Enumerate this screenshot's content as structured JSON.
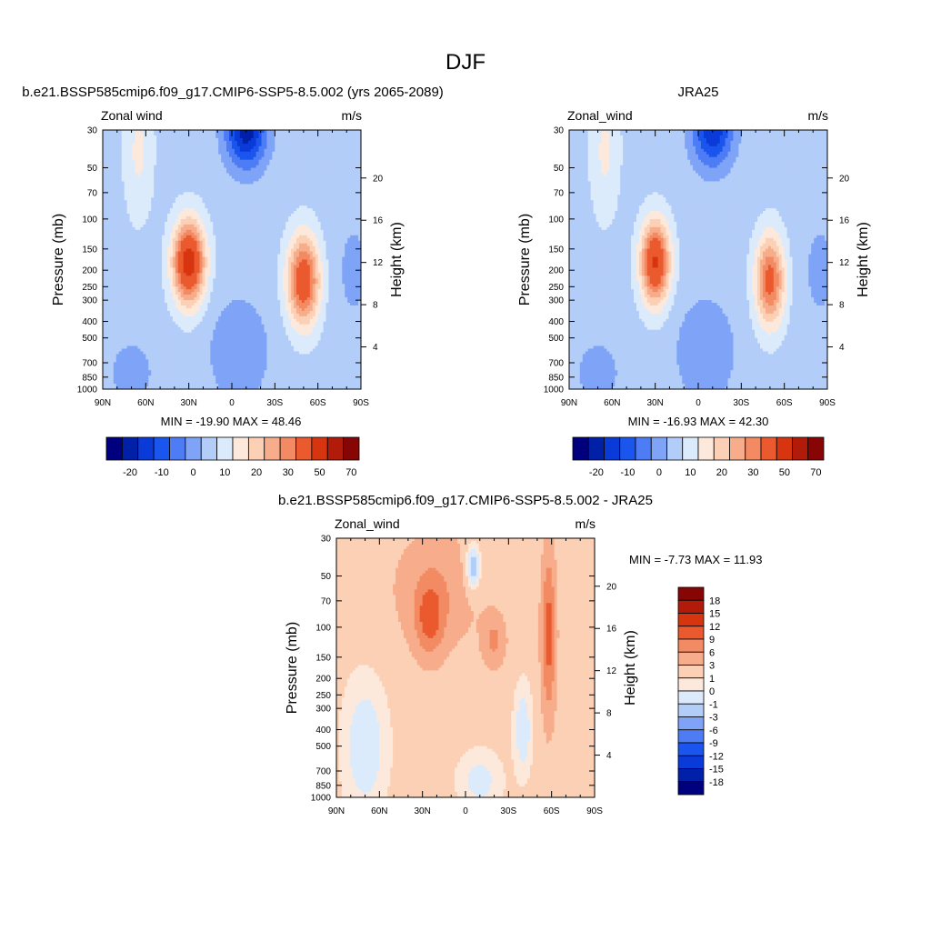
{
  "page_title": "DJF",
  "chart_data": [
    {
      "type": "heatmap",
      "title": "b.e21.BSSP585cmip6.f09_g17.CMIP6-SSP5-8.5.002 (yrs 2065-2089)",
      "left_label": "Zonal wind",
      "right_label": "m/s",
      "ylabel": "Pressure (mb)",
      "ylabel_right": "Height (km)",
      "x_ticks": [
        "90N",
        "60N",
        "30N",
        "0",
        "30S",
        "60S",
        "90S"
      ],
      "y_ticks": [
        "30",
        "50",
        "70",
        "100",
        "150",
        "200",
        "250",
        "300",
        "400",
        "500",
        "700",
        "850",
        "1000"
      ],
      "y_ticks_right": [
        "20",
        "16",
        "12",
        "8",
        "4"
      ],
      "stats": "MIN = -19.90  MAX =  48.46",
      "min": -19.9,
      "max": 48.46,
      "colorbar": {
        "orientation": "horizontal",
        "labels": [
          "-20",
          "-10",
          "0",
          "10",
          "20",
          "30",
          "50",
          "70"
        ],
        "colors": [
          "#00007f",
          "#0020a8",
          "#0a3ad8",
          "#1a55ee",
          "#4d7cf5",
          "#7fa4f7",
          "#b3cdf9",
          "#dcebfb",
          "#fde9dc",
          "#fcd0b4",
          "#f7ad8b",
          "#f28a63",
          "#ea5a2e",
          "#d73410",
          "#b21a0a",
          "#870505"
        ]
      }
    },
    {
      "type": "heatmap",
      "title": "JRA25",
      "left_label": "Zonal_wind",
      "right_label": "m/s",
      "ylabel": "Pressure (mb)",
      "ylabel_right": "Height (km)",
      "x_ticks": [
        "90N",
        "60N",
        "30N",
        "0",
        "30S",
        "60S",
        "90S"
      ],
      "y_ticks": [
        "30",
        "50",
        "70",
        "100",
        "150",
        "200",
        "250",
        "300",
        "400",
        "500",
        "700",
        "850",
        "1000"
      ],
      "y_ticks_right": [
        "20",
        "16",
        "12",
        "8",
        "4"
      ],
      "stats": "MIN = -16.93  MAX =  42.30",
      "min": -16.93,
      "max": 42.3,
      "colorbar": {
        "orientation": "horizontal",
        "labels": [
          "-20",
          "-10",
          "0",
          "10",
          "20",
          "30",
          "50",
          "70"
        ],
        "colors": [
          "#00007f",
          "#0020a8",
          "#0a3ad8",
          "#1a55ee",
          "#4d7cf5",
          "#7fa4f7",
          "#b3cdf9",
          "#dcebfb",
          "#fde9dc",
          "#fcd0b4",
          "#f7ad8b",
          "#f28a63",
          "#ea5a2e",
          "#d73410",
          "#b21a0a",
          "#870505"
        ]
      }
    },
    {
      "type": "heatmap",
      "title": "b.e21.BSSP585cmip6.f09_g17.CMIP6-SSP5-8.5.002 - JRA25",
      "left_label": "Zonal_wind",
      "right_label": "m/s",
      "ylabel": "Pressure (mb)",
      "ylabel_right": "Height (km)",
      "x_ticks": [
        "90N",
        "60N",
        "30N",
        "0",
        "30S",
        "60S",
        "90S"
      ],
      "y_ticks": [
        "30",
        "50",
        "70",
        "100",
        "150",
        "200",
        "250",
        "300",
        "400",
        "500",
        "700",
        "850",
        "1000"
      ],
      "y_ticks_right": [
        "20",
        "16",
        "12",
        "8",
        "4"
      ],
      "stats": "MIN =  -7.73  MAX =  11.93",
      "min": -7.73,
      "max": 11.93,
      "colorbar": {
        "orientation": "vertical",
        "labels": [
          "18",
          "15",
          "12",
          "9",
          "6",
          "3",
          "1",
          "0",
          "-1",
          "-3",
          "-6",
          "-9",
          "-12",
          "-15",
          "-18"
        ],
        "colors": [
          "#870505",
          "#b21a0a",
          "#d73410",
          "#ea5a2e",
          "#f28a63",
          "#f7ad8b",
          "#fcd0b4",
          "#fde9dc",
          "#dcebfb",
          "#b3cdf9",
          "#7fa4f7",
          "#4d7cf5",
          "#1a55ee",
          "#0a3ad8",
          "#0020a8",
          "#00007f"
        ]
      }
    }
  ]
}
